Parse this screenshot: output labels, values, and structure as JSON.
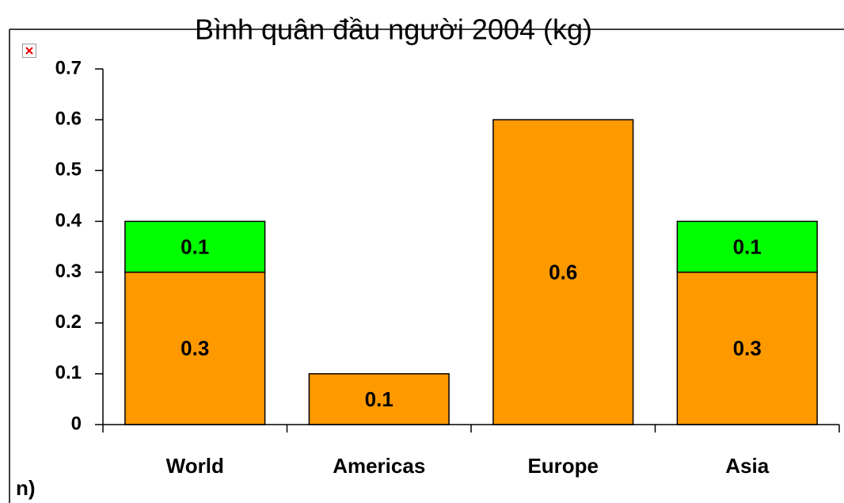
{
  "chart_data": {
    "type": "bar",
    "stacked": true,
    "title": "Bình quân đầu người  2004 (kg)",
    "footnote": "n)",
    "categories": [
      "World",
      "Americas",
      "Europe",
      "Asia"
    ],
    "series": [
      {
        "color": "#ff9900",
        "values": [
          0.3,
          0.1,
          0.6,
          0.3
        ]
      },
      {
        "color": "#00ff00",
        "values": [
          0.1,
          null,
          null,
          0.1
        ]
      }
    ],
    "ylim": [
      0,
      0.7
    ],
    "yticks": [
      0,
      0.1,
      0.2,
      0.3,
      0.4,
      0.5,
      0.6,
      0.7
    ],
    "grid": false
  }
}
